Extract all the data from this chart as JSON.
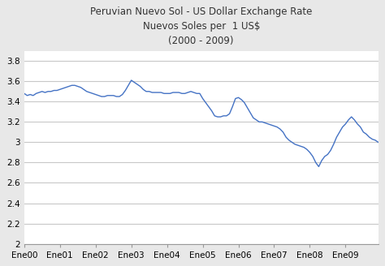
{
  "title_line1": "Peruvian Nuevo Sol - US Dollar Exchange Rate",
  "title_line2": "Nuevos Soles per  1 US$",
  "title_line3": "(2000 - 2009)",
  "line_color": "#4472C4",
  "background_color": "#e8e8e8",
  "plot_bg_color": "#ffffff",
  "ylim": [
    2.0,
    3.9
  ],
  "yticks": [
    2.0,
    2.2,
    2.4,
    2.6,
    2.8,
    3.0,
    3.2,
    3.4,
    3.6,
    3.8
  ],
  "ytick_labels": [
    "2",
    "2.2",
    "2.4",
    "2.6",
    "2.8",
    "3",
    "3.2",
    "3.4",
    "3.6",
    "3.8"
  ],
  "xtick_labels": [
    "Ene00",
    "Ene01",
    "Ene02",
    "Ene03",
    "Ene04",
    "Ene05",
    "Ene06",
    "Ene07",
    "Ene08",
    "Ene09"
  ],
  "data_x": [
    0,
    1,
    2,
    3,
    4,
    5,
    6,
    7,
    8,
    9,
    10,
    11,
    12,
    13,
    14,
    15,
    16,
    17,
    18,
    19,
    20,
    21,
    22,
    23,
    24,
    25,
    26,
    27,
    28,
    29,
    30,
    31,
    32,
    33,
    34,
    35,
    36,
    37,
    38,
    39,
    40,
    41,
    42,
    43,
    44,
    45,
    46,
    47,
    48,
    49,
    50,
    51,
    52,
    53,
    54,
    55,
    56,
    57,
    58,
    59,
    60,
    61,
    62,
    63,
    64,
    65,
    66,
    67,
    68,
    69,
    70,
    71,
    72,
    73,
    74,
    75,
    76,
    77,
    78,
    79,
    80,
    81,
    82,
    83,
    84,
    85,
    86,
    87,
    88,
    89,
    90,
    91,
    92,
    93,
    94,
    95,
    96,
    97,
    98,
    99,
    100,
    101,
    102,
    103,
    104,
    105,
    106,
    107,
    108,
    109,
    110,
    111,
    112,
    113,
    114,
    115,
    116,
    117,
    118,
    119
  ],
  "data_y": [
    3.48,
    3.46,
    3.47,
    3.46,
    3.48,
    3.49,
    3.5,
    3.49,
    3.5,
    3.5,
    3.51,
    3.51,
    3.52,
    3.53,
    3.54,
    3.55,
    3.56,
    3.56,
    3.55,
    3.54,
    3.52,
    3.5,
    3.49,
    3.48,
    3.47,
    3.46,
    3.45,
    3.45,
    3.46,
    3.46,
    3.46,
    3.45,
    3.45,
    3.47,
    3.51,
    3.56,
    3.61,
    3.59,
    3.57,
    3.55,
    3.52,
    3.5,
    3.5,
    3.49,
    3.49,
    3.49,
    3.49,
    3.48,
    3.48,
    3.48,
    3.49,
    3.49,
    3.49,
    3.48,
    3.48,
    3.49,
    3.5,
    3.49,
    3.48,
    3.48,
    3.43,
    3.39,
    3.35,
    3.31,
    3.26,
    3.25,
    3.25,
    3.26,
    3.26,
    3.28,
    3.35,
    3.43,
    3.44,
    3.42,
    3.39,
    3.34,
    3.29,
    3.24,
    3.22,
    3.2,
    3.2,
    3.19,
    3.18,
    3.17,
    3.16,
    3.15,
    3.13,
    3.1,
    3.05,
    3.02,
    3.0,
    2.98,
    2.97,
    2.96,
    2.95,
    2.93,
    2.9,
    2.86,
    2.8,
    2.76,
    2.82,
    2.86,
    2.88,
    2.92,
    2.98,
    3.05,
    3.1,
    3.15,
    3.18,
    3.22,
    3.25,
    3.22,
    3.18,
    3.15,
    3.1,
    3.08,
    3.05,
    3.03,
    3.02,
    3.0
  ],
  "xtick_positions": [
    0,
    12,
    24,
    36,
    48,
    60,
    72,
    84,
    96,
    108
  ]
}
